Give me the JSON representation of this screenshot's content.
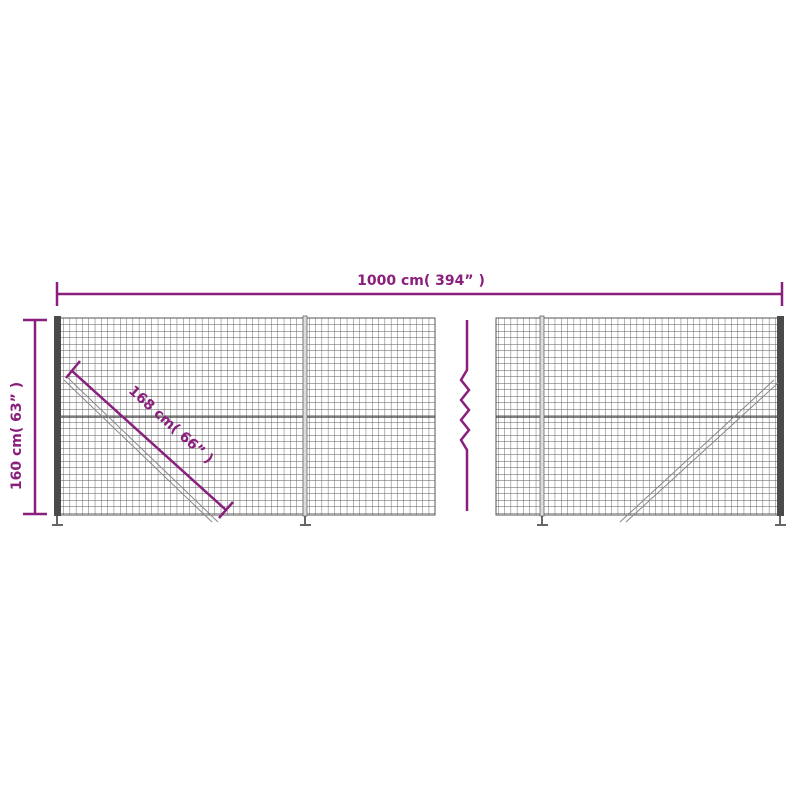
{
  "colors": {
    "dimension": "#8a1f7d",
    "mesh": "#555555",
    "post": "#444444",
    "background": "#ffffff"
  },
  "dimensions": {
    "length_label": "1000 cm( 394” )",
    "height_label": "160 cm( 63” )",
    "brace_label": "168 cm( 66” )"
  }
}
